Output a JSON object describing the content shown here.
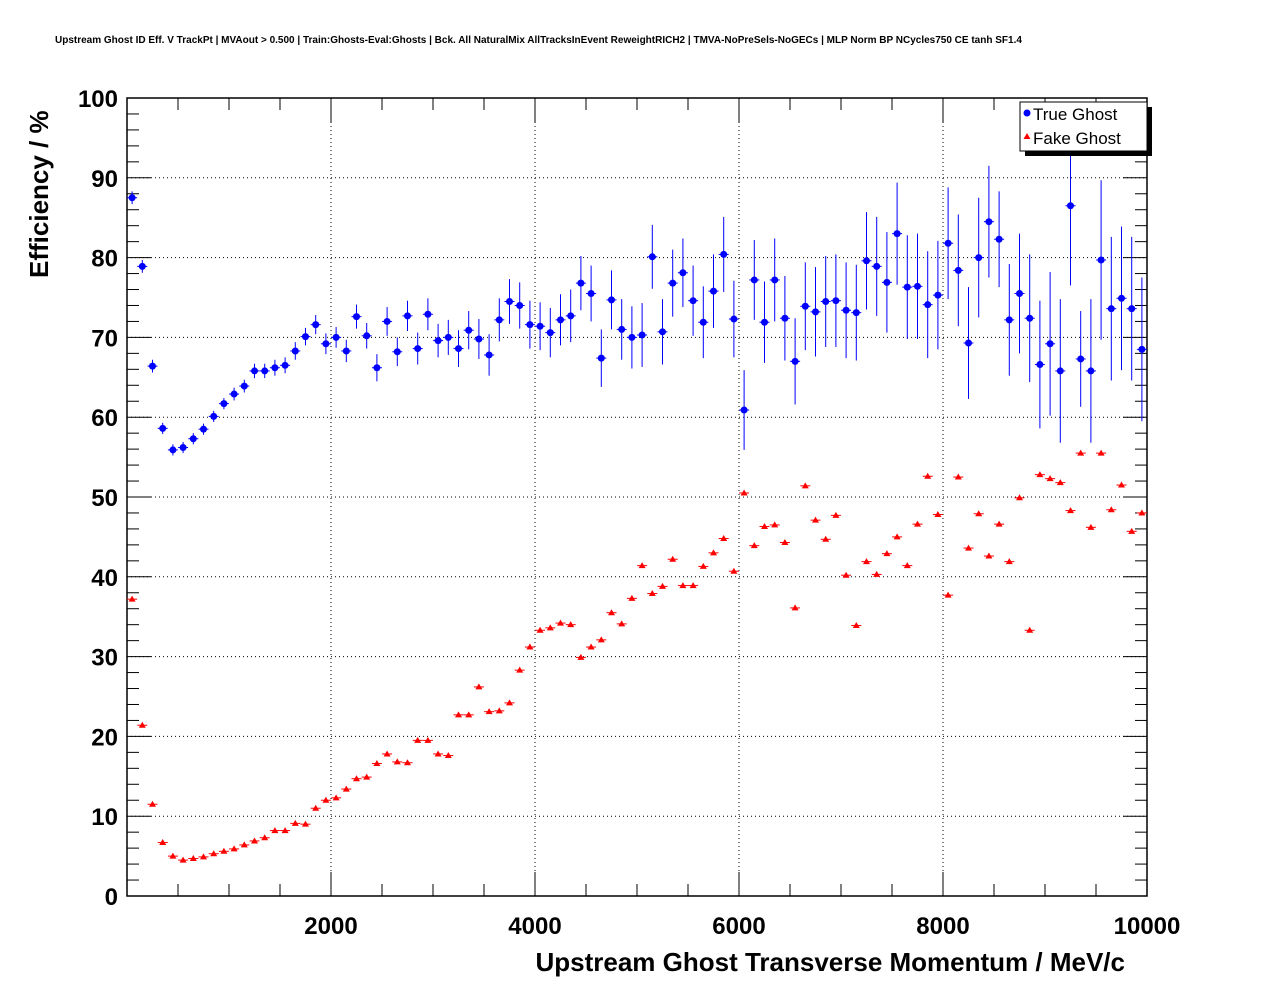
{
  "chart_data": {
    "type": "scatter",
    "title": "Upstream Ghost ID Eff. V TrackPt | MVAout > 0.500 | Train:Ghosts-Eval:Ghosts | Bck. All NaturalMix AllTracksInEvent ReweightRICH2 | TMVA-NoPreSels-NoGECs | MLP Norm BP NCycles750 CE tanh SF1.4",
    "xlabel": "Upstream Ghost Transverse Momentum / MeV/c",
    "ylabel": "Efficiency / %",
    "xlim": [
      0,
      10000
    ],
    "ylim": [
      0,
      100
    ],
    "xticks": [
      2000,
      4000,
      6000,
      8000,
      10000
    ],
    "yticks": [
      0,
      10,
      20,
      30,
      40,
      50,
      60,
      70,
      80,
      90,
      100
    ],
    "grid": true,
    "legend_position": "top-right",
    "series": [
      {
        "name": "True Ghost",
        "color": "#0000ff",
        "marker": "circle",
        "x": [
          50,
          150,
          250,
          350,
          450,
          550,
          650,
          750,
          850,
          950,
          1050,
          1150,
          1250,
          1350,
          1450,
          1550,
          1650,
          1750,
          1850,
          1950,
          2050,
          2150,
          2250,
          2350,
          2450,
          2550,
          2650,
          2750,
          2850,
          2950,
          3050,
          3150,
          3250,
          3350,
          3450,
          3550,
          3650,
          3750,
          3850,
          3950,
          4050,
          4150,
          4250,
          4350,
          4450,
          4550,
          4650,
          4750,
          4850,
          4950,
          5050,
          5150,
          5250,
          5350,
          5450,
          5550,
          5650,
          5750,
          5850,
          5950,
          6050,
          6150,
          6250,
          6350,
          6450,
          6550,
          6650,
          6750,
          6850,
          6950,
          7050,
          7150,
          7250,
          7350,
          7450,
          7550,
          7650,
          7750,
          7850,
          7950,
          8050,
          8150,
          8250,
          8350,
          8450,
          8550,
          8650,
          8750,
          8850,
          8950,
          9050,
          9150,
          9250,
          9350,
          9450,
          9550,
          9650,
          9750,
          9850,
          9950
        ],
        "y": [
          87.5,
          78.9,
          66.4,
          58.6,
          55.9,
          56.2,
          57.3,
          58.5,
          60.1,
          61.7,
          62.9,
          63.9,
          65.8,
          65.8,
          66.2,
          66.5,
          68.3,
          70.1,
          71.6,
          69.2,
          70,
          68.3,
          72.6,
          70.2,
          66.2,
          72,
          68.2,
          72.7,
          68.6,
          72.9,
          69.6,
          70,
          68.6,
          70.9,
          69.8,
          67.8,
          72.2,
          74.5,
          74,
          71.6,
          71.4,
          70.6,
          72.2,
          72.7,
          76.8,
          75.5,
          67.4,
          74.7,
          71,
          70,
          70.3,
          80.1,
          70.7,
          76.8,
          78.1,
          74.6,
          71.9,
          75.8,
          80.4,
          72.3,
          60.9,
          77.2,
          71.9,
          77.2,
          72.4,
          67,
          73.9,
          73.2,
          74.5,
          74.6,
          73.4,
          73.1,
          79.6,
          78.9,
          76.9,
          83,
          76.3,
          76.4,
          74.1,
          75.3,
          81.8,
          78.4,
          69.3,
          80,
          84.5,
          82.3,
          72.2,
          75.5,
          72.4,
          66.6,
          69.2,
          65.8,
          86.5,
          67.3,
          65.8,
          79.7,
          73.6,
          74.9,
          73.6,
          68.5
        ],
        "err": [
          0.8,
          0.8,
          0.8,
          0.7,
          0.7,
          0.7,
          0.7,
          0.7,
          0.7,
          0.7,
          0.8,
          0.8,
          0.9,
          0.9,
          1,
          1,
          1.1,
          1.1,
          1.2,
          1.3,
          1.3,
          1.4,
          1.5,
          1.6,
          1.7,
          1.8,
          1.8,
          1.9,
          2,
          2,
          2.1,
          2.2,
          2.3,
          2.4,
          2.5,
          2.6,
          2.7,
          2.8,
          2.9,
          3,
          3,
          3.1,
          3.2,
          3.3,
          3.4,
          3.5,
          3.6,
          3.7,
          3.8,
          3.9,
          4,
          4,
          4.1,
          4.2,
          4.3,
          4.4,
          4.5,
          4.6,
          4.7,
          4.8,
          5,
          5,
          5.1,
          5.2,
          5.3,
          5.4,
          5.5,
          5.6,
          5.7,
          5.8,
          6,
          6,
          6.1,
          6.2,
          6.3,
          6.4,
          6.5,
          6.6,
          6.7,
          6.8,
          7,
          7,
          7,
          7.5,
          7,
          6,
          7,
          7.5,
          8,
          8,
          9,
          9,
          10,
          6,
          9,
          10,
          9,
          9,
          9,
          9
        ]
      },
      {
        "name": "Fake Ghost",
        "color": "#ff0000",
        "marker": "triangle",
        "x": [
          50,
          150,
          250,
          350,
          450,
          550,
          650,
          750,
          850,
          950,
          1050,
          1150,
          1250,
          1350,
          1450,
          1550,
          1650,
          1750,
          1850,
          1950,
          2050,
          2150,
          2250,
          2350,
          2450,
          2550,
          2650,
          2750,
          2850,
          2950,
          3050,
          3150,
          3250,
          3350,
          3450,
          3550,
          3650,
          3750,
          3850,
          3950,
          4050,
          4150,
          4250,
          4350,
          4450,
          4550,
          4650,
          4750,
          4850,
          4950,
          5050,
          5150,
          5250,
          5350,
          5450,
          5550,
          5650,
          5750,
          5850,
          5950,
          6050,
          6150,
          6250,
          6350,
          6450,
          6550,
          6650,
          6750,
          6850,
          6950,
          7050,
          7150,
          7250,
          7350,
          7450,
          7550,
          7650,
          7750,
          7850,
          7950,
          8050,
          8150,
          8250,
          8350,
          8450,
          8550,
          8650,
          8750,
          8850,
          8950,
          9050,
          9150,
          9250,
          9350,
          9450,
          9550,
          9650,
          9750,
          9850,
          9950
        ],
        "y": [
          37.2,
          21.4,
          11.5,
          6.7,
          5,
          4.5,
          4.7,
          4.9,
          5.3,
          5.6,
          5.9,
          6.4,
          6.9,
          7.3,
          8.2,
          8.2,
          9.1,
          9,
          11,
          12,
          12.3,
          13.4,
          14.7,
          14.9,
          16.6,
          17.8,
          16.8,
          16.7,
          19.5,
          19.5,
          17.8,
          17.6,
          22.7,
          22.7,
          26.2,
          23.1,
          23.2,
          24.2,
          28.3,
          31.2,
          33.3,
          33.6,
          34.2,
          34,
          29.9,
          31.2,
          32.1,
          35.5,
          34.1,
          37.3,
          41.4,
          37.9,
          38.8,
          42.2,
          38.9,
          38.9,
          41.3,
          43,
          44.8,
          40.7,
          50.5,
          43.9,
          46.3,
          46.5,
          44.3,
          36.1,
          51.4,
          47.1,
          44.7,
          47.7,
          40.2,
          33.9,
          41.9,
          40.3,
          42.9,
          45,
          41.4,
          46.6,
          52.6,
          47.8,
          37.7,
          52.5,
          43.6,
          47.9,
          42.6,
          46.6,
          41.9,
          49.9,
          33.3,
          52.8,
          52.3,
          51.8,
          48.3,
          55.5,
          46.2,
          55.5,
          48.4,
          51.5,
          45.7,
          48
        ]
      }
    ]
  }
}
